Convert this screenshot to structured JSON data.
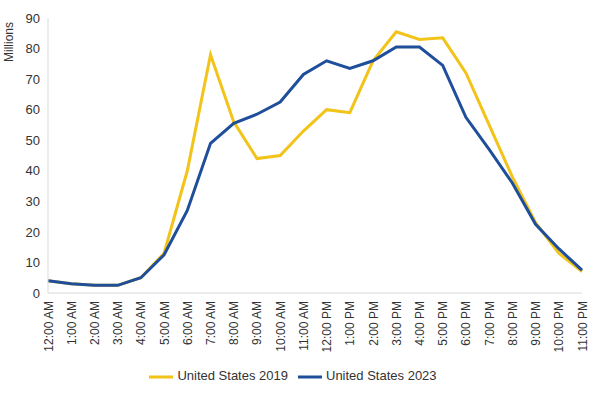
{
  "chart_data": {
    "type": "line",
    "y_label": "Millions",
    "categories": [
      "12:00 AM",
      "1:00 AM",
      "2:00 AM",
      "3:00 AM",
      "4:00 AM",
      "5:00 AM",
      "6:00 AM",
      "7:00 AM",
      "8:00 AM",
      "9:00 AM",
      "10:00 AM",
      "11:00 AM",
      "12:00 PM",
      "1:00 PM",
      "2:00 PM",
      "3:00 PM",
      "4:00 PM",
      "5:00 PM",
      "6:00 PM",
      "7:00 PM",
      "8:00 PM",
      "9:00 PM",
      "10:00 PM",
      "11:00 PM"
    ],
    "series": [
      {
        "name": "United States 2019",
        "color": "#f2c318",
        "values": [
          4,
          3,
          2.5,
          2.5,
          5,
          13,
          40,
          78,
          56,
          44,
          45,
          53,
          60,
          59,
          76,
          85.5,
          83,
          83.5,
          72,
          55,
          38,
          23,
          13,
          7
        ]
      },
      {
        "name": "United States 2023",
        "color": "#1f4e9a",
        "values": [
          4,
          3,
          2.5,
          2.5,
          5,
          12.5,
          27,
          49,
          55.5,
          58.5,
          62.5,
          71.5,
          76,
          73.5,
          76,
          80.5,
          80.5,
          74.5,
          57.5,
          47,
          36,
          22.5,
          14.5,
          7.5
        ]
      }
    ],
    "ylim": [
      0,
      90
    ],
    "yticks": [
      0,
      10,
      20,
      30,
      40,
      50,
      60,
      70,
      80,
      90
    ],
    "grid": false,
    "legend": "bottom"
  }
}
